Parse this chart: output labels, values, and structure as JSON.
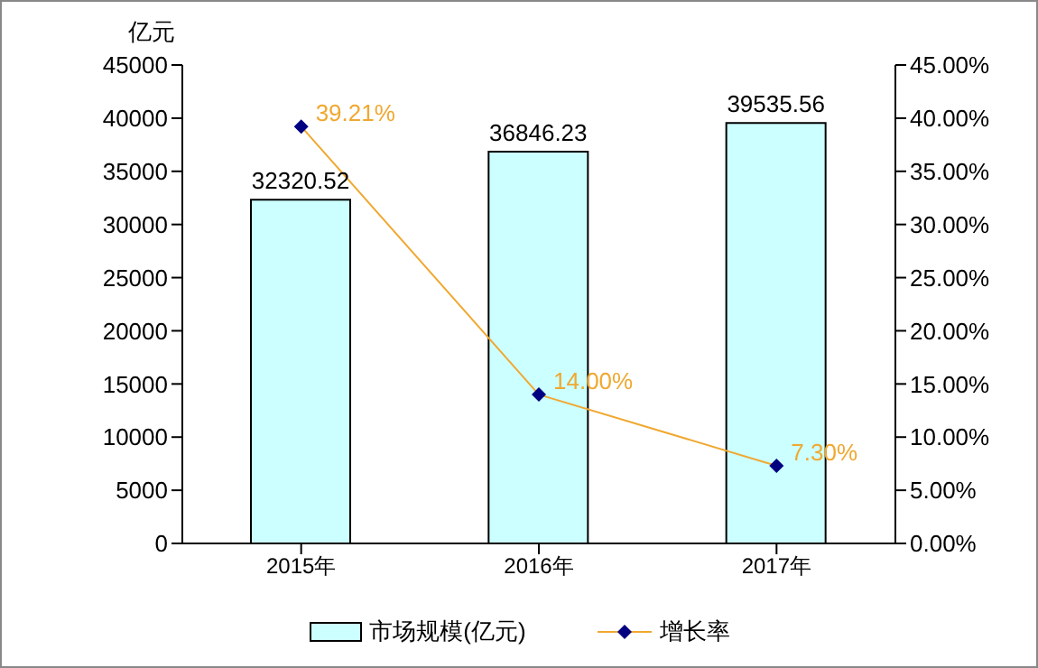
{
  "chart_data": {
    "type": "bar",
    "ylabel": "亿元",
    "categories": [
      "2015年",
      "2016年",
      "2017年"
    ],
    "series": [
      {
        "name": "市场规模(亿元)",
        "color": "#ccffff",
        "values": [
          32320.52,
          36846.23,
          39535.56
        ],
        "value_labels": [
          "32320.52",
          "36846.23",
          "39535.56"
        ]
      },
      {
        "name": "增长率",
        "type": "line",
        "axis": "y2",
        "color": "#f0a830",
        "values": [
          39.21,
          14.0,
          7.3
        ],
        "value_labels": [
          "39.21%",
          "14.00%",
          "7.30%"
        ]
      }
    ],
    "ylim": [
      0,
      45000
    ],
    "yticks": [
      0,
      5000,
      10000,
      15000,
      20000,
      25000,
      30000,
      35000,
      40000,
      45000
    ],
    "y2lim": [
      0,
      45
    ],
    "y2ticks": [
      {
        "value": 0,
        "label": "0.00%"
      },
      {
        "value": 5,
        "label": "5.00%"
      },
      {
        "value": 10,
        "label": "10.00%"
      },
      {
        "value": 15,
        "label": "15.00%"
      },
      {
        "value": 20,
        "label": "20.00%"
      },
      {
        "value": 25,
        "label": "25.00%"
      },
      {
        "value": 30,
        "label": "30.00%"
      },
      {
        "value": 35,
        "label": "35.00%"
      },
      {
        "value": 40,
        "label": "40.00%"
      },
      {
        "value": 45,
        "label": "45.00%"
      }
    ],
    "marker": "diamond",
    "legend": "bottom",
    "grid": false
  }
}
